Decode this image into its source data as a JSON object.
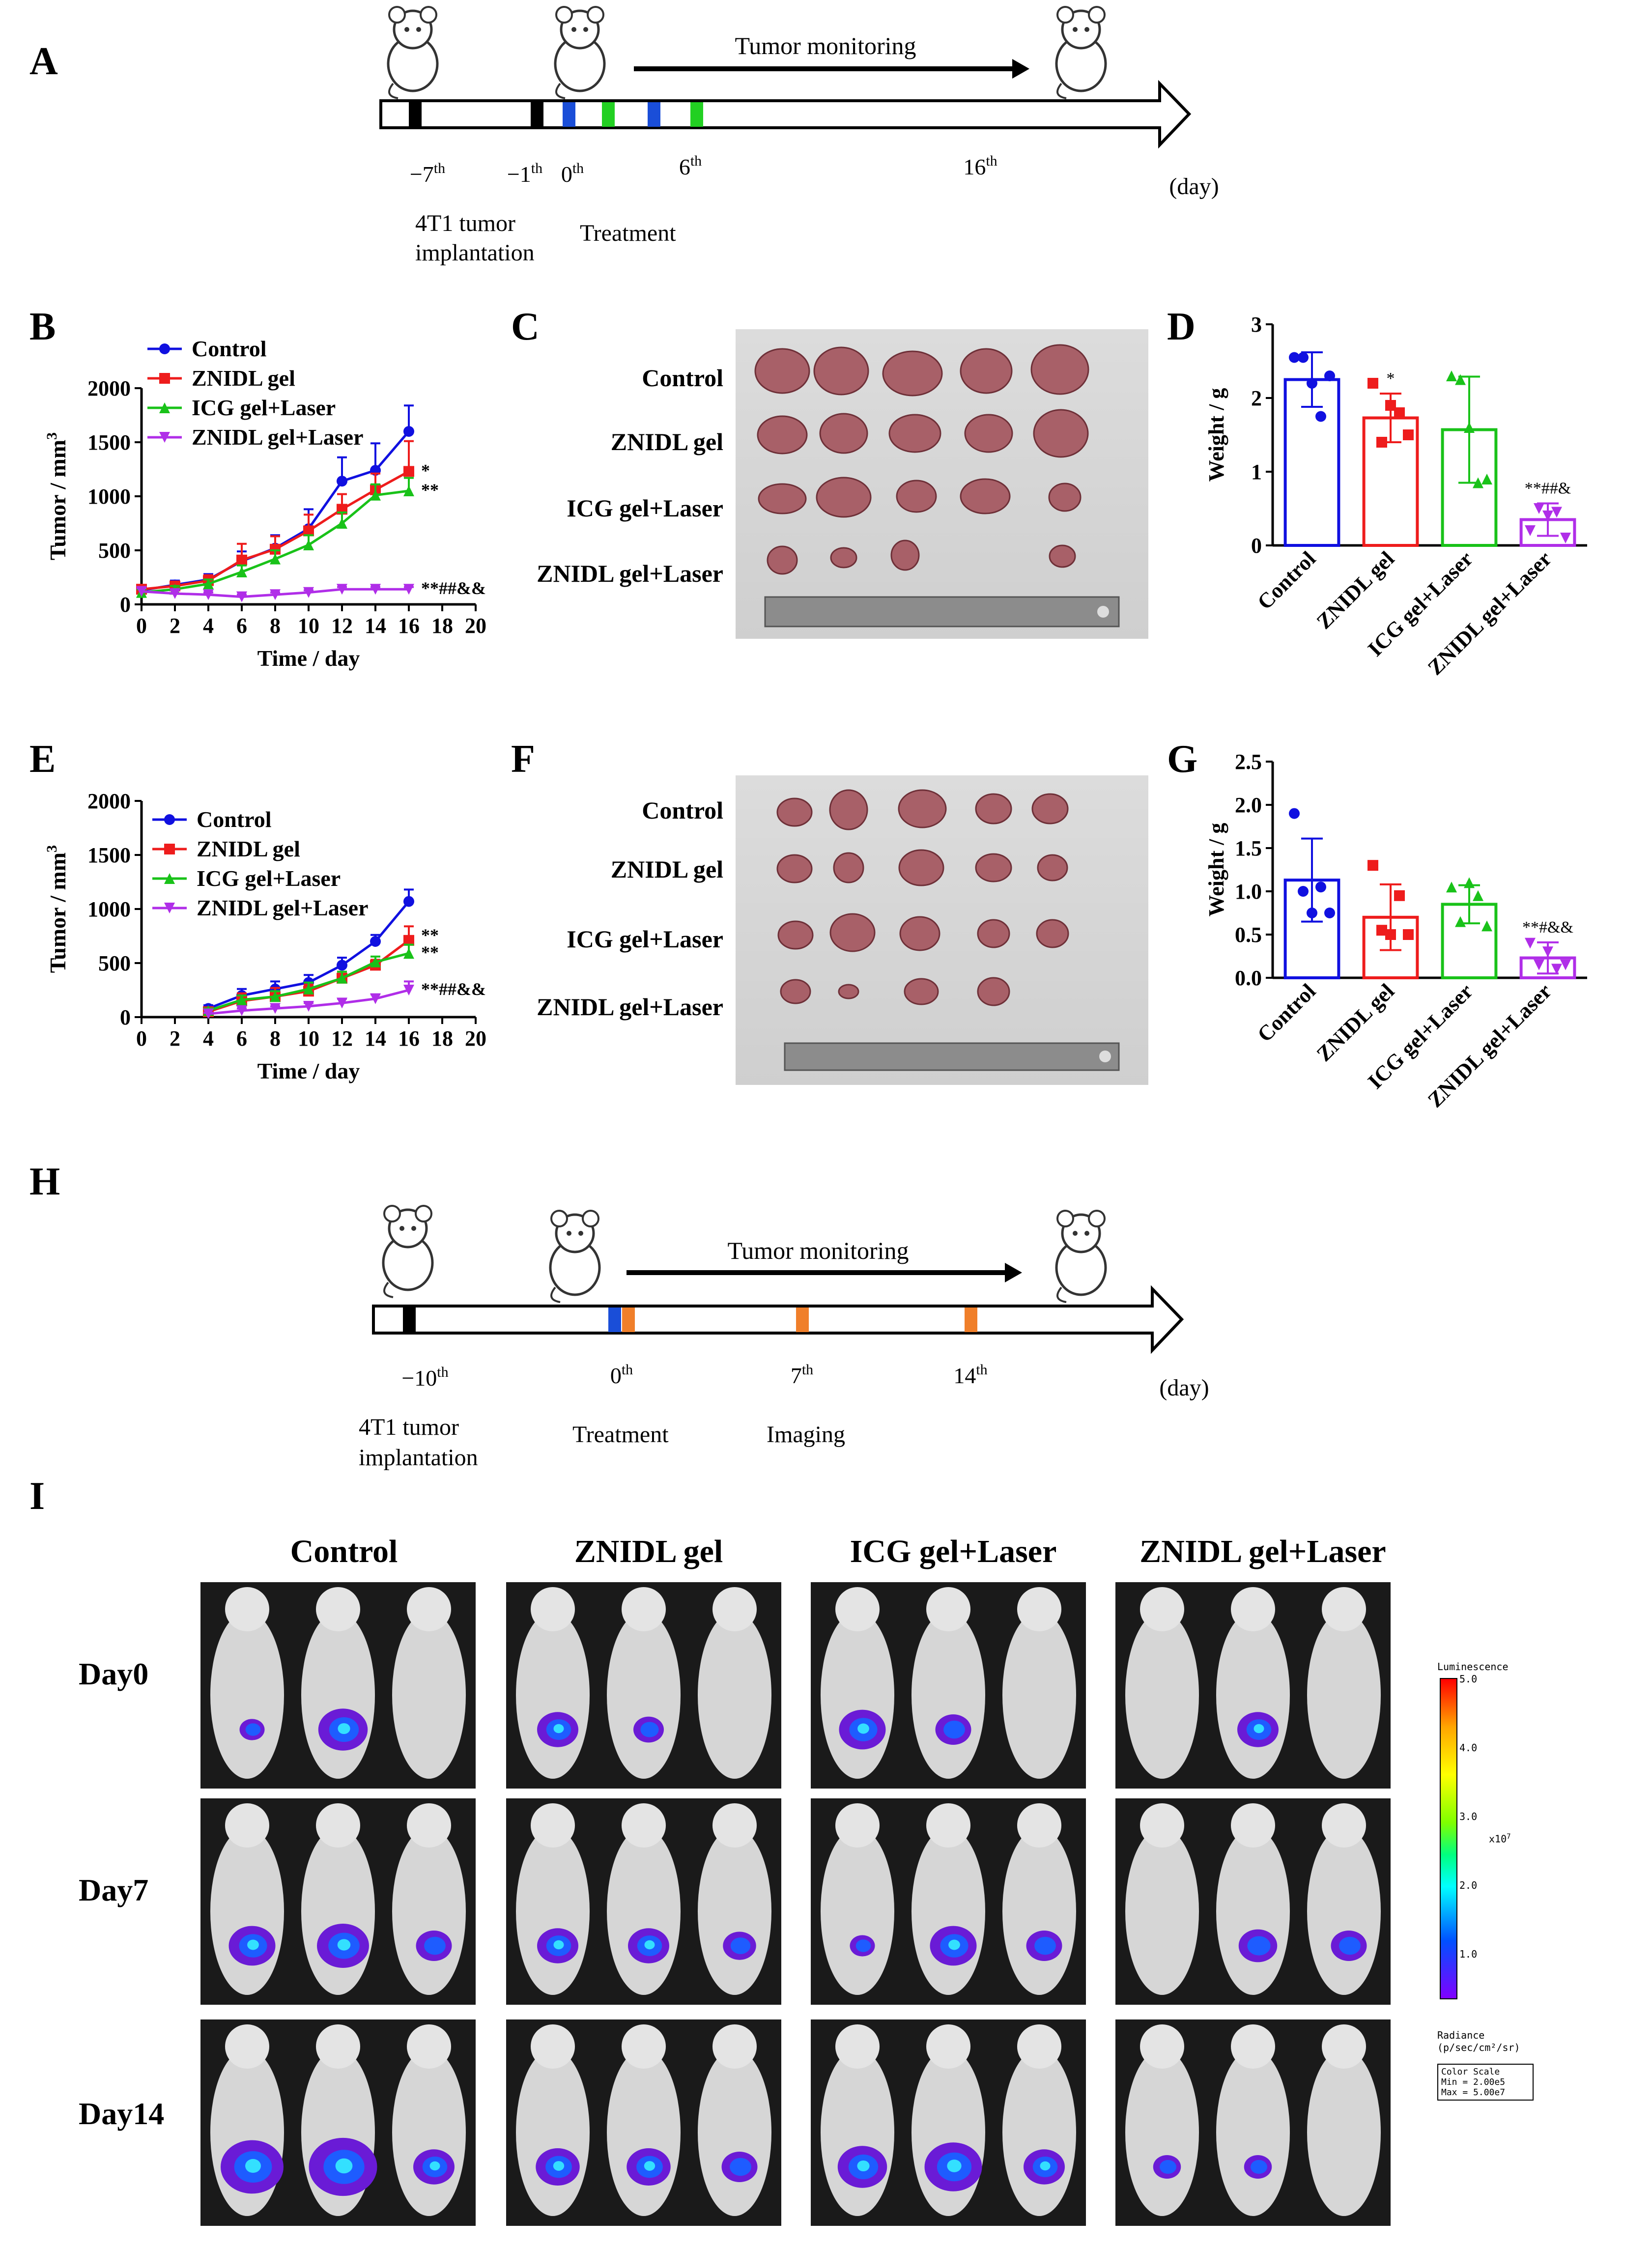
{
  "panels": {
    "A": "A",
    "B": "B",
    "C": "C",
    "D": "D",
    "E": "E",
    "F": "F",
    "G": "G",
    "H": "H",
    "I": "I"
  },
  "timeline1": {
    "monitor": "Tumor monitoring",
    "days": [
      "−7",
      "−1",
      "0",
      "6",
      "16"
    ],
    "sup": "th",
    "unit": "(day)",
    "implant1": "4T1 tumor",
    "implant2": "implantation",
    "treatment": "Treatment"
  },
  "timeline2": {
    "monitor": "Tumor monitoring",
    "days": [
      "−10",
      "0",
      "7",
      "14"
    ],
    "sup": "th",
    "unit": "(day)",
    "implant1": "4T1 tumor",
    "implant2": "implantation",
    "treatment": "Treatment",
    "imaging": "Imaging"
  },
  "groups": [
    "Control",
    "ZNIDL gel",
    "ICG gel+Laser",
    "ZNIDL gel+Laser"
  ],
  "colors": {
    "control": "#1010e0",
    "znidl": "#ee1c1c",
    "icg": "#19c219",
    "znidl_laser": "#b02ee8"
  },
  "chart_data": [
    {
      "id": "B",
      "type": "line",
      "xlabel": "Time / day",
      "ylabel": "Tumor / mm",
      "ylabel_sup": "3",
      "xlim": [
        0,
        20
      ],
      "ylim": [
        0,
        2000
      ],
      "xticks": [
        "0",
        "2",
        "4",
        "6",
        "8",
        "10",
        "12",
        "14",
        "16",
        "18",
        "20"
      ],
      "yticks": [
        "0",
        "500",
        "1000",
        "1500",
        "2000"
      ],
      "x": [
        0,
        2,
        4,
        6,
        8,
        10,
        12,
        14,
        16
      ],
      "series": [
        {
          "name": "Control",
          "values": [
            130,
            180,
            230,
            400,
            520,
            700,
            1140,
            1240,
            1600
          ],
          "err": [
            40,
            40,
            50,
            90,
            120,
            180,
            220,
            250,
            240
          ]
        },
        {
          "name": "ZNIDL gel",
          "values": [
            140,
            170,
            220,
            410,
            510,
            680,
            880,
            1060,
            1230
          ],
          "err": [
            40,
            40,
            50,
            150,
            120,
            150,
            140,
            150,
            280
          ]
        },
        {
          "name": "ICG gel+Laser",
          "values": [
            110,
            140,
            190,
            300,
            420,
            550,
            750,
            1010,
            1050
          ],
          "err": [
            30,
            30,
            40,
            60,
            80,
            90,
            100,
            100,
            120
          ]
        },
        {
          "name": "ZNIDL gel+Laser",
          "values": [
            120,
            100,
            90,
            70,
            90,
            110,
            140,
            140,
            140
          ],
          "err": [
            30,
            30,
            20,
            20,
            20,
            20,
            20,
            20,
            20
          ]
        }
      ],
      "annotations": [
        "*",
        "**",
        "**##&&"
      ]
    },
    {
      "id": "E",
      "type": "line",
      "xlabel": "Time / day",
      "ylabel": "Tumor / mm",
      "ylabel_sup": "3",
      "xlim": [
        0,
        20
      ],
      "ylim": [
        0,
        2000
      ],
      "xticks": [
        "0",
        "2",
        "4",
        "6",
        "8",
        "10",
        "12",
        "14",
        "16",
        "18",
        "20"
      ],
      "yticks": [
        "0",
        "500",
        "1000",
        "1500",
        "2000"
      ],
      "x": [
        4,
        6,
        8,
        10,
        12,
        14,
        16
      ],
      "series": [
        {
          "name": "Control",
          "values": [
            80,
            200,
            260,
            320,
            480,
            700,
            1070
          ],
          "err": [
            30,
            60,
            70,
            70,
            70,
            60,
            110
          ]
        },
        {
          "name": "ZNIDL gel",
          "values": [
            50,
            150,
            190,
            240,
            360,
            480,
            710
          ],
          "err": [
            20,
            70,
            80,
            60,
            60,
            50,
            130
          ]
        },
        {
          "name": "ICG gel+Laser",
          "values": [
            60,
            160,
            190,
            260,
            360,
            510,
            590
          ],
          "err": [
            20,
            40,
            50,
            60,
            60,
            50,
            80
          ]
        },
        {
          "name": "ZNIDL gel+Laser",
          "values": [
            30,
            60,
            80,
            100,
            130,
            170,
            250
          ],
          "err": [
            10,
            20,
            20,
            30,
            40,
            40,
            80
          ]
        }
      ],
      "annotations": [
        "**",
        "**",
        "**##&&"
      ]
    },
    {
      "id": "D",
      "type": "bar",
      "ylabel": "Weight / g",
      "ylim": [
        0,
        3
      ],
      "yticks": [
        "0",
        "1",
        "2",
        "3"
      ],
      "categories": [
        "Control",
        "ZNIDL gel",
        "ICG gel+Laser",
        "ZNIDL gel+Laser"
      ],
      "values": [
        2.25,
        1.73,
        1.57,
        0.35
      ],
      "err": [
        0.37,
        0.33,
        0.72,
        0.22
      ],
      "points": [
        [
          2.55,
          2.55,
          2.2,
          1.75,
          2.3
        ],
        [
          2.2,
          1.4,
          1.9,
          1.8,
          1.5
        ],
        [
          2.3,
          2.25,
          1.6,
          0.85,
          0.9
        ],
        [
          0.2,
          0.5,
          0.4,
          0.45,
          0.1
        ]
      ],
      "annotations": [
        "",
        "*",
        "",
        "**##&"
      ]
    },
    {
      "id": "G",
      "type": "bar",
      "ylabel": "Weight / g",
      "ylim": [
        0,
        2.5
      ],
      "yticks": [
        "0.0",
        "0.5",
        "1.0",
        "1.5",
        "2.0",
        "2.5"
      ],
      "categories": [
        "Control",
        "ZNIDL gel",
        "ICG gel+Laser",
        "ZNIDL gel+Laser"
      ],
      "values": [
        1.13,
        0.7,
        0.85,
        0.23
      ],
      "err": [
        0.48,
        0.38,
        0.22,
        0.18
      ],
      "points": [
        [
          1.9,
          1.0,
          0.75,
          1.05,
          0.75
        ],
        [
          1.3,
          0.55,
          0.5,
          0.95,
          0.5
        ],
        [
          1.05,
          0.65,
          1.1,
          0.95,
          0.6
        ],
        [
          0.4,
          0.15,
          0.3,
          0.1,
          0.15
        ]
      ],
      "annotations": [
        "",
        "",
        "",
        "**#&&"
      ]
    }
  ],
  "photoC": {
    "rows": [
      "Control",
      "ZNIDL gel",
      "ICG gel+Laser",
      "ZNIDL gel+Laser"
    ]
  },
  "photoF": {
    "rows": [
      "Control",
      "ZNIDL gel",
      "ICG gel+Laser",
      "ZNIDL gel+Laser"
    ]
  },
  "bio": {
    "days": [
      "Day0",
      "Day7",
      "Day14"
    ],
    "scale": {
      "title": "Luminescence",
      "ticks": [
        "5.0",
        "4.0",
        "3.0",
        "2.0",
        "1.0"
      ],
      "exp": "x10",
      "exp_sup": "7",
      "radiance1": "Radiance",
      "radiance2": "(p/sec/cm²/sr)",
      "box1": "Color Scale",
      "box2": "Min = 2.00e5",
      "box3": "Max = 5.00e7"
    }
  }
}
